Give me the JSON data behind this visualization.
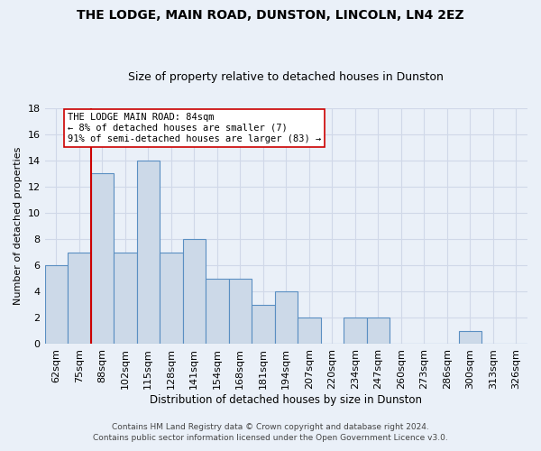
{
  "title": "THE LODGE, MAIN ROAD, DUNSTON, LINCOLN, LN4 2EZ",
  "subtitle": "Size of property relative to detached houses in Dunston",
  "xlabel": "Distribution of detached houses by size in Dunston",
  "ylabel": "Number of detached properties",
  "footnote1": "Contains HM Land Registry data © Crown copyright and database right 2024.",
  "footnote2": "Contains public sector information licensed under the Open Government Licence v3.0.",
  "bins": [
    "62sqm",
    "75sqm",
    "88sqm",
    "102sqm",
    "115sqm",
    "128sqm",
    "141sqm",
    "154sqm",
    "168sqm",
    "181sqm",
    "194sqm",
    "207sqm",
    "220sqm",
    "234sqm",
    "247sqm",
    "260sqm",
    "273sqm",
    "286sqm",
    "300sqm",
    "313sqm",
    "326sqm"
  ],
  "values": [
    6,
    7,
    13,
    7,
    14,
    7,
    8,
    5,
    5,
    3,
    4,
    2,
    0,
    2,
    2,
    0,
    0,
    0,
    1,
    0,
    0
  ],
  "bar_color": "#ccd9e8",
  "bar_edge_color": "#5a8fc2",
  "grid_color": "#d0d8e8",
  "background_color": "#eaf0f8",
  "vline_color": "#cc0000",
  "vline_x": 1.5,
  "annotation_text": "THE LODGE MAIN ROAD: 84sqm\n← 8% of detached houses are smaller (7)\n91% of semi-detached houses are larger (83) →",
  "annotation_box_color": "#ffffff",
  "annotation_box_edge": "#cc0000",
  "ylim": [
    0,
    18
  ],
  "yticks": [
    0,
    2,
    4,
    6,
    8,
    10,
    12,
    14,
    16,
    18
  ]
}
